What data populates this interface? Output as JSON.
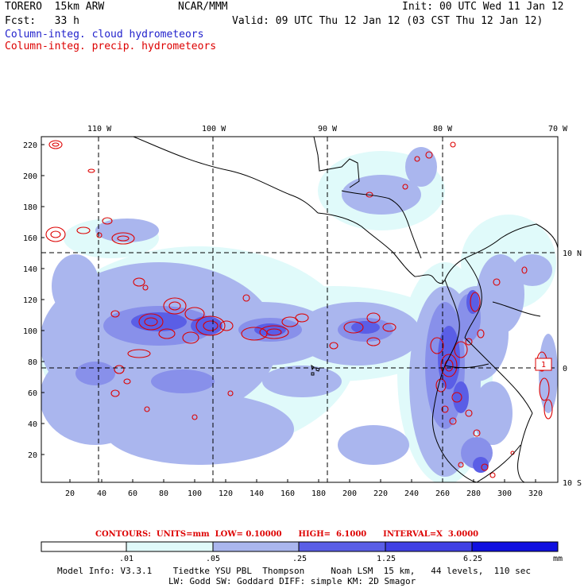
{
  "header": {
    "model": "TORERO  15km ARW",
    "org": "NCAR/MMM",
    "init": "Init: 00 UTC Wed 11 Jan 12",
    "fcst": "Fcst:   33 h",
    "valid": "Valid: 09 UTC Thu 12 Jan 12 (03 CST Thu 12 Jan 12)",
    "field1": "Column-integ. cloud hydrometeors",
    "field2": "Column-integ. precip. hydrometeors"
  },
  "map": {
    "lon_labels": [
      "110 W",
      "100 W",
      "90 W",
      "80 W",
      "70 W"
    ],
    "lat_labels": [
      "10 N",
      "0",
      "10 S"
    ],
    "y_ticks": [
      "220",
      "200",
      "180",
      "160",
      "140",
      "120",
      "100",
      "80",
      "60",
      "40",
      "20"
    ],
    "x_ticks": [
      "20",
      "40",
      "60",
      "80",
      "100",
      "120",
      "140",
      "160",
      "180",
      "200",
      "220",
      "240",
      "260",
      "280",
      "300",
      "320"
    ],
    "max_marker": "1",
    "colors": {
      "level1": "#e0fafa",
      "level2": "#aab6ee",
      "level3": "#8890ea",
      "level4": "#5a5ee6",
      "level5": "#2a2ee0",
      "level6": "#1010e0",
      "precip_contour": "#dd0000",
      "coast": "#000000"
    }
  },
  "contour_info": "CONTOURS:  UNITS=mm  LOW= 0.10000      HIGH=  6.1000      INTERVAL=X  3.0000",
  "colorbar": {
    "labels": [
      ".01",
      ".05",
      ".25",
      "1.25",
      "6.25"
    ],
    "units": "mm",
    "colors": [
      "#ffffff",
      "#e0fafa",
      "#aab6ee",
      "#5a5ee6",
      "#4040e4",
      "#1010e0"
    ]
  },
  "footer": {
    "line1": "Model Info: V3.3.1    Tiedtke YSU PBL  Thompson     Noah LSM  15 km,   44 levels,  110 sec",
    "line2": "LW: Godd SW: Goddard DIFF: simple KM: 2D Smagor"
  }
}
